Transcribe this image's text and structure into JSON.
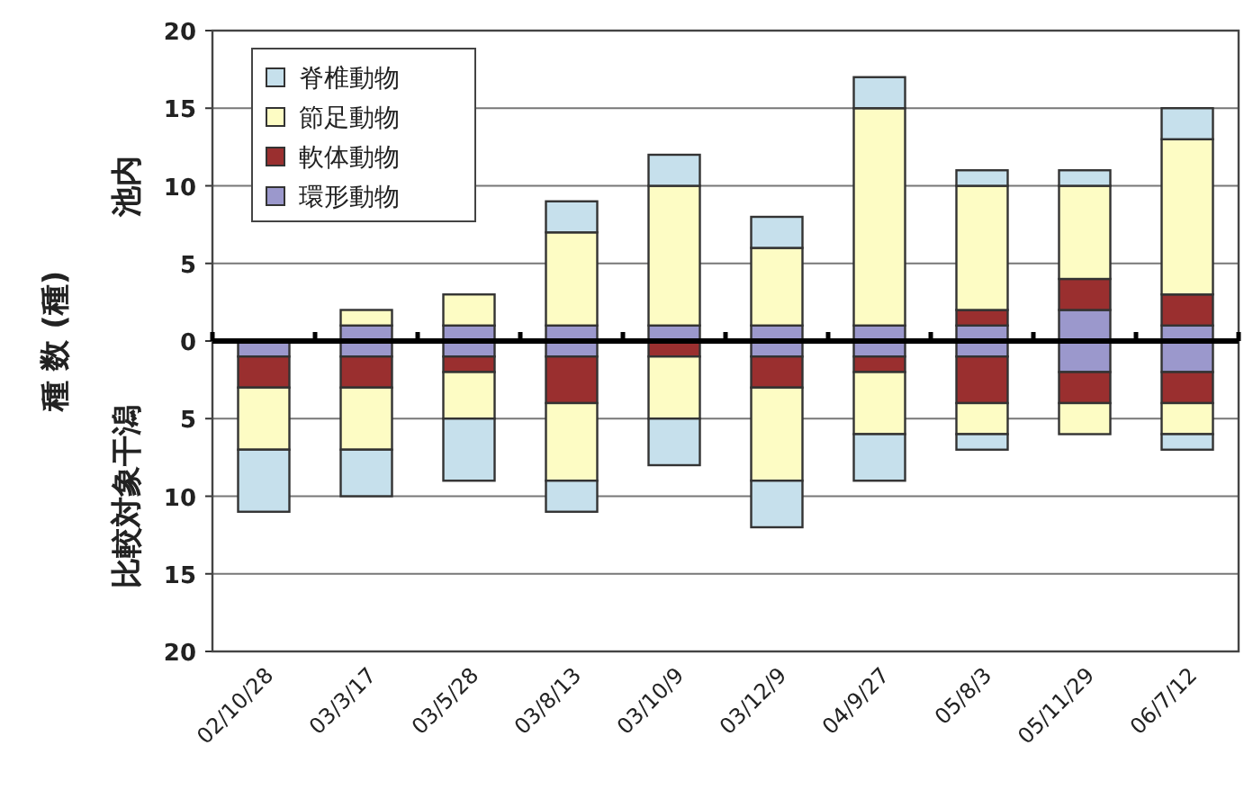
{
  "chart_data": {
    "type": "bar",
    "stacked": true,
    "ylabel": "種 数 (種)",
    "categories": [
      "02/10/28",
      "03/3/17",
      "03/5/28",
      "03/8/13",
      "03/10/9",
      "03/12/9",
      "04/9/27",
      "05/8/3",
      "05/11/29",
      "06/7/12"
    ],
    "series": [
      {
        "name": "環形動物",
        "color": "#9b98cc",
        "values": [
          0,
          1,
          1,
          1,
          1,
          1,
          1,
          1,
          2,
          1
        ]
      },
      {
        "name": "軟体動物",
        "color": "#9a2f2f",
        "values": [
          0,
          0,
          0,
          0,
          0,
          0,
          0,
          1,
          2,
          2
        ]
      },
      {
        "name": "節足動物",
        "color": "#fdfcc4",
        "values": [
          0,
          1,
          2,
          6,
          9,
          5,
          14,
          8,
          6,
          10
        ]
      },
      {
        "name": "脊椎動物",
        "color": "#c6e0ec",
        "values": [
          0,
          0,
          0,
          2,
          2,
          2,
          2,
          1,
          1,
          2
        ]
      },
      {
        "color": "#9b98cc",
        "values": [
          -1,
          -1,
          -1,
          -1,
          0,
          -1,
          -1,
          -1,
          -2,
          -2
        ]
      },
      {
        "color": "#9a2f2f",
        "values": [
          -2,
          -2,
          -1,
          -3,
          -1,
          -2,
          -1,
          -3,
          -2,
          -2
        ]
      },
      {
        "color": "#fdfcc4",
        "values": [
          -4,
          -4,
          -3,
          -5,
          -4,
          -6,
          -4,
          -2,
          -2,
          -2
        ]
      },
      {
        "color": "#c6e0ec",
        "values": [
          -4,
          -3,
          -4,
          -2,
          -3,
          -3,
          -3,
          -1,
          0,
          -1
        ]
      }
    ],
    "ylim": [
      -20,
      20
    ],
    "yticks": [
      {
        "value": -20,
        "label": "20"
      },
      {
        "value": -15,
        "label": "15"
      },
      {
        "value": -10,
        "label": "10"
      },
      {
        "value": -5,
        "label": "5"
      },
      0,
      5,
      10,
      15,
      20
    ],
    "grid": "y",
    "legend": "top left",
    "ref_lines": [
      {
        "axis": "y",
        "value": 0,
        "color": "#000000"
      }
    ],
    "annotations": [
      "池内",
      "比較対象干潟"
    ]
  }
}
